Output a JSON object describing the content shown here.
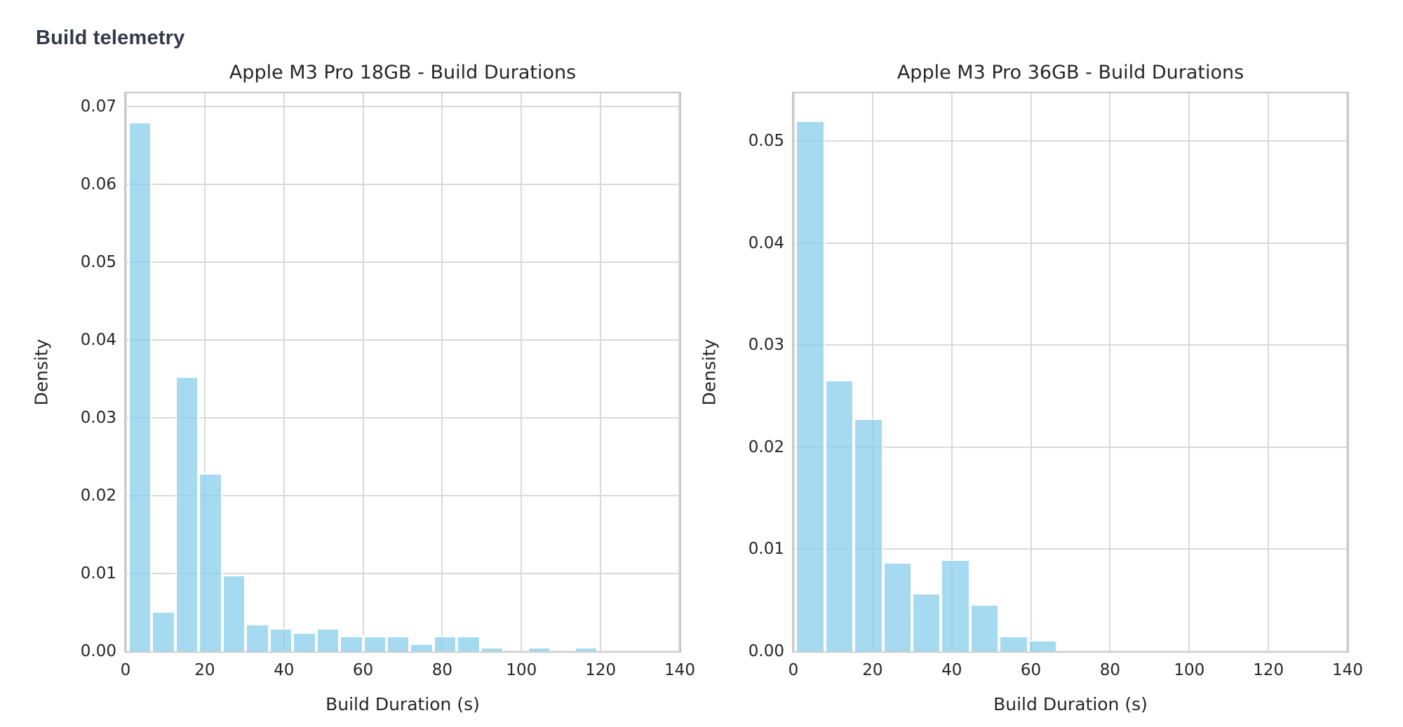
{
  "page": {
    "heading": "Build telemetry"
  },
  "colors": {
    "bar_fill": "rgba(135,206,235,0.75)",
    "bar_fill_base": "#87ceeb",
    "bar_edge": "#ffffff",
    "grid": "#d9d9d9",
    "spine": "#c6c6c6",
    "text": "#262626",
    "heading_text": "#333a49",
    "background": "#ffffff"
  },
  "chart_data": [
    {
      "type": "bar",
      "subtype": "histogram-density",
      "title": "Apple M3 Pro 18GB - Build Durations",
      "xlabel": "Build Duration (s)",
      "ylabel": "Density",
      "xlim": [
        0,
        140
      ],
      "ylim": [
        0,
        0.0717
      ],
      "grid": true,
      "xticks": [
        0,
        20,
        40,
        60,
        80,
        100,
        120,
        140
      ],
      "xtick_labels": [
        "0",
        "20",
        "40",
        "60",
        "80",
        "100",
        "120",
        "140"
      ],
      "yticks": [
        0.0,
        0.01,
        0.02,
        0.03,
        0.04,
        0.05,
        0.06,
        0.07
      ],
      "ytick_labels": [
        "0.00",
        "0.01",
        "0.02",
        "0.03",
        "0.04",
        "0.05",
        "0.06",
        "0.07"
      ],
      "bin_start": 0.7,
      "bin_width": 5.93,
      "densities": [
        0.068,
        0.0051,
        0.0353,
        0.0229,
        0.0098,
        0.0035,
        0.003,
        0.0024,
        0.003,
        0.002,
        0.002,
        0.002,
        0.001,
        0.002,
        0.002,
        0.0005,
        0,
        0.0005,
        0,
        0.0005
      ]
    },
    {
      "type": "bar",
      "subtype": "histogram-density",
      "title": "Apple M3 Pro 36GB - Build Durations",
      "xlabel": "Build Duration (s)",
      "ylabel": "Density",
      "xlim": [
        0,
        140
      ],
      "ylim": [
        0,
        0.0547
      ],
      "grid": true,
      "xticks": [
        0,
        20,
        40,
        60,
        80,
        100,
        120,
        140
      ],
      "xtick_labels": [
        "0",
        "20",
        "40",
        "60",
        "80",
        "100",
        "120",
        "140"
      ],
      "yticks": [
        0.0,
        0.01,
        0.02,
        0.03,
        0.04,
        0.05
      ],
      "ytick_labels": [
        "0.00",
        "0.01",
        "0.02",
        "0.03",
        "0.04",
        "0.05"
      ],
      "bin_start": 0.55,
      "bin_width": 7.35,
      "densities": [
        0.052,
        0.0266,
        0.0228,
        0.0087,
        0.0057,
        0.009,
        0.0046,
        0.0015,
        0.0011
      ]
    }
  ]
}
